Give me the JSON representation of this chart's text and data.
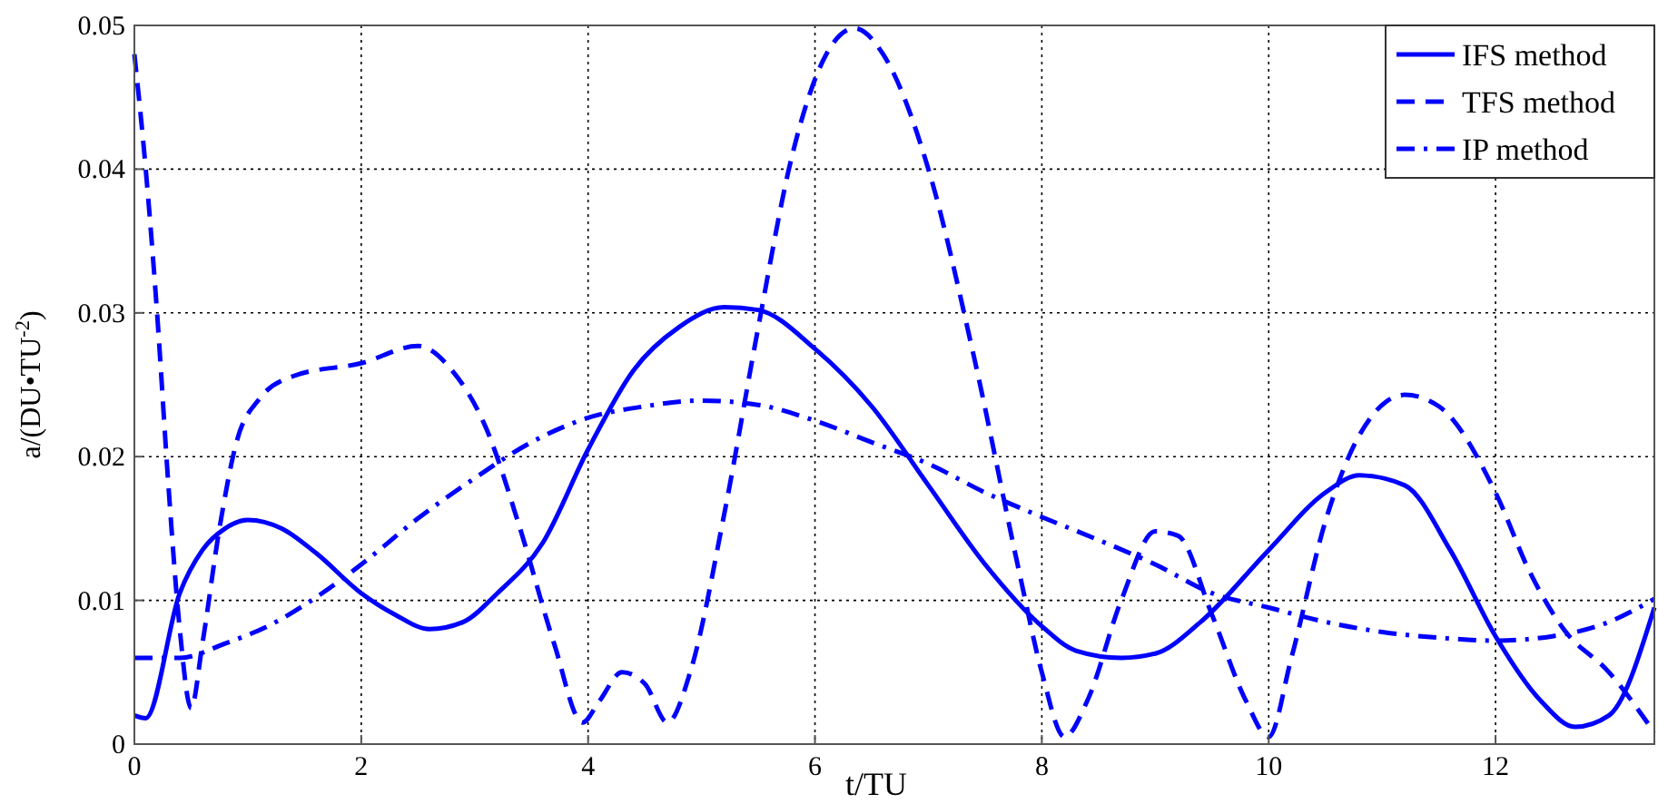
{
  "chart_data": {
    "type": "line",
    "xlabel": "t/TU",
    "ylabel": "a/(DU•TU$^{-2}$)",
    "xlim": [
      0,
      13.4
    ],
    "ylim": [
      0,
      0.05
    ],
    "xticks": [
      0,
      2,
      4,
      6,
      8,
      10,
      12
    ],
    "yticks": [
      0,
      0.01,
      0.02,
      0.03,
      0.04,
      0.05
    ],
    "grid": true,
    "legend": "top right",
    "series": [
      {
        "name": "IFS method",
        "color": "#0000ff",
        "line_style": "solid",
        "x": [
          0,
          0.1,
          0.4,
          0.6,
          0.8,
          1.0,
          1.3,
          1.6,
          2.0,
          2.3,
          2.6,
          2.9,
          3.2,
          3.6,
          4.0,
          4.4,
          4.8,
          5.2,
          5.5,
          6.0,
          6.5,
          7.0,
          7.5,
          8.0,
          8.3,
          8.7,
          9.0,
          9.4,
          10.0,
          10.5,
          10.8,
          11.2,
          11.6,
          12.0,
          12.4,
          12.7,
          13.0,
          13.4
        ],
        "values": [
          0.002,
          0.0018,
          0.0105,
          0.0135,
          0.015,
          0.0156,
          0.015,
          0.0133,
          0.0105,
          0.009,
          0.008,
          0.0085,
          0.0105,
          0.014,
          0.0205,
          0.026,
          0.029,
          0.0304,
          0.0302,
          0.0275,
          0.0235,
          0.018,
          0.0125,
          0.0082,
          0.0065,
          0.006,
          0.0063,
          0.0085,
          0.0135,
          0.0175,
          0.0187,
          0.018,
          0.0135,
          0.0075,
          0.003,
          0.0012,
          0.002,
          0.0095
        ]
      },
      {
        "name": "TFS method",
        "color": "#0000ff",
        "line_style": "dashed",
        "x": [
          0,
          0.1,
          0.2,
          0.3,
          0.4,
          0.5,
          0.6,
          0.75,
          0.9,
          1.1,
          1.4,
          2.0,
          2.5,
          2.8,
          3.1,
          3.4,
          3.7,
          3.95,
          4.1,
          4.3,
          4.5,
          4.7,
          4.9,
          5.2,
          5.5,
          5.8,
          6.1,
          6.35,
          6.6,
          7.0,
          7.4,
          7.8,
          8.0,
          8.2,
          8.4,
          8.7,
          9.0,
          9.2,
          9.5,
          9.8,
          10.0,
          10.2,
          10.5,
          10.8,
          11.2,
          11.5,
          12.0,
          12.3,
          12.6,
          13.0,
          13.4
        ],
        "values": [
          0.048,
          0.04,
          0.03,
          0.018,
          0.008,
          0.0025,
          0.007,
          0.015,
          0.021,
          0.024,
          0.0256,
          0.0265,
          0.0277,
          0.026,
          0.022,
          0.015,
          0.007,
          0.0015,
          0.003,
          0.005,
          0.0042,
          0.0015,
          0.005,
          0.016,
          0.029,
          0.041,
          0.048,
          0.0498,
          0.048,
          0.04,
          0.027,
          0.012,
          0.005,
          0.0005,
          0.003,
          0.01,
          0.0148,
          0.0145,
          0.009,
          0.003,
          0.0005,
          0.006,
          0.0155,
          0.0215,
          0.0243,
          0.0235,
          0.0175,
          0.012,
          0.008,
          0.005,
          0.0008
        ]
      },
      {
        "name": "IP method",
        "color": "#0000ff",
        "line_style": "dashdot",
        "x": [
          0,
          0.4,
          0.8,
          1.2,
          1.6,
          2.0,
          2.5,
          3.0,
          3.5,
          4.0,
          4.5,
          5.0,
          5.5,
          6.0,
          6.5,
          7.0,
          7.5,
          8.0,
          8.5,
          9.0,
          9.5,
          10.0,
          10.5,
          11.0,
          11.5,
          12.0,
          12.5,
          13.0,
          13.4
        ],
        "values": [
          0.006,
          0.006,
          0.007,
          0.0083,
          0.0102,
          0.0125,
          0.0157,
          0.0185,
          0.021,
          0.0227,
          0.0235,
          0.0239,
          0.0236,
          0.0225,
          0.021,
          0.0195,
          0.0175,
          0.0158,
          0.0142,
          0.0125,
          0.0105,
          0.0095,
          0.0085,
          0.0078,
          0.0074,
          0.0072,
          0.0075,
          0.0085,
          0.0101
        ]
      }
    ]
  }
}
